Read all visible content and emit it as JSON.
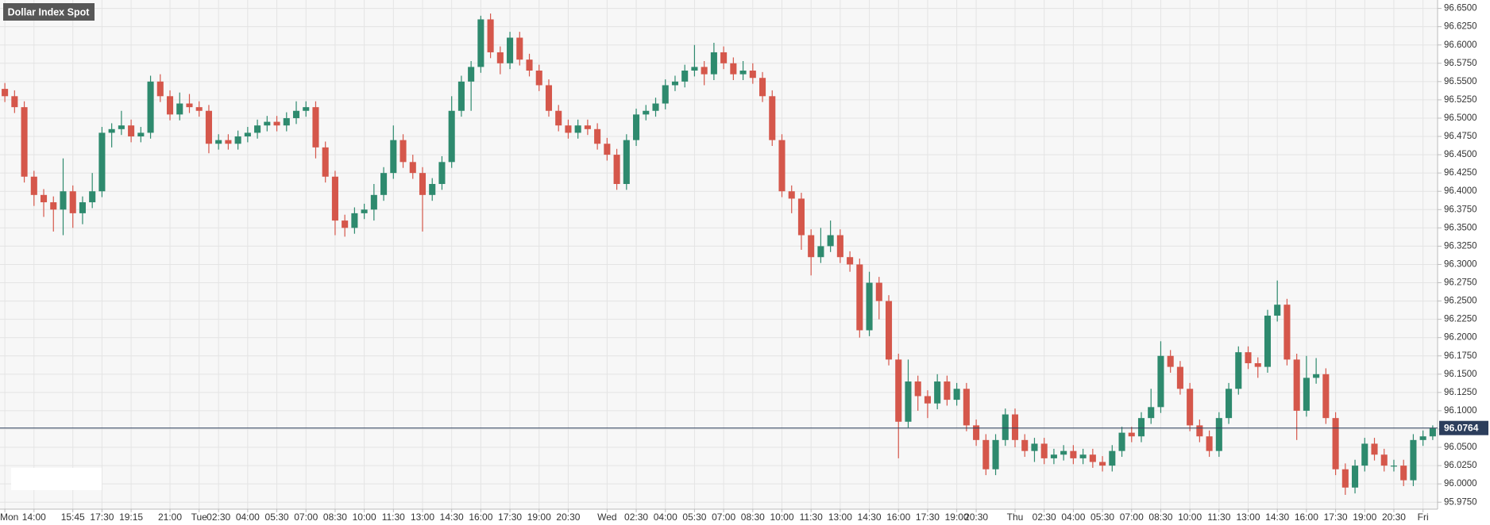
{
  "chart_data": {
    "type": "candlestick",
    "title": "Dollar Index Spot",
    "categories": [
      "Mon",
      null,
      null,
      "14:00",
      null,
      null,
      null,
      "15:45",
      null,
      null,
      "17:30",
      null,
      null,
      "19:15",
      null,
      null,
      null,
      "21:00",
      null,
      null,
      "Tue",
      null,
      "02:30",
      null,
      null,
      "04:00",
      null,
      null,
      "05:30",
      null,
      null,
      "07:00",
      null,
      null,
      "08:30",
      null,
      null,
      "10:00",
      null,
      null,
      "11:30",
      null,
      null,
      "13:00",
      null,
      null,
      "14:30",
      null,
      null,
      "16:00",
      null,
      null,
      "17:30",
      null,
      null,
      "19:00",
      null,
      null,
      "20:30",
      null,
      null,
      null,
      "Wed",
      null,
      null,
      "02:30",
      null,
      null,
      "04:00",
      null,
      null,
      "05:30",
      null,
      null,
      "07:00",
      null,
      null,
      "08:30",
      null,
      null,
      "10:00",
      null,
      null,
      "11:30",
      null,
      null,
      "13:00",
      null,
      null,
      "14:30",
      null,
      null,
      "16:00",
      null,
      null,
      "17:30",
      null,
      null,
      "19:00",
      null,
      "20:30",
      null,
      null,
      null,
      "Thu",
      null,
      null,
      "02:30",
      null,
      null,
      "04:00",
      null,
      null,
      "05:30",
      null,
      null,
      "07:00",
      null,
      null,
      "08:30",
      null,
      null,
      "10:00",
      null,
      null,
      "11:30",
      null,
      null,
      "13:00",
      null,
      null,
      "14:30",
      null,
      null,
      "16:00",
      null,
      null,
      "17:30",
      null,
      null,
      "19:00",
      null,
      null,
      "20:30",
      null,
      null,
      "Fri",
      null
    ],
    "open": [
      96.54,
      96.53,
      96.515,
      96.42,
      96.395,
      96.385,
      96.375,
      96.4,
      96.37,
      96.385,
      96.4,
      96.48,
      96.485,
      96.49,
      96.475,
      96.48,
      96.55,
      96.53,
      96.505,
      96.52,
      96.515,
      96.51,
      96.465,
      96.47,
      96.465,
      96.475,
      96.48,
      96.49,
      96.495,
      96.49,
      96.5,
      96.51,
      96.515,
      96.46,
      96.42,
      96.36,
      96.35,
      96.37,
      96.375,
      96.395,
      96.425,
      96.47,
      96.44,
      96.425,
      96.395,
      96.41,
      96.44,
      96.51,
      96.55,
      96.57,
      96.635,
      96.59,
      96.575,
      96.61,
      96.58,
      96.565,
      96.545,
      96.51,
      96.49,
      96.48,
      96.49,
      96.485,
      96.465,
      96.45,
      96.41,
      96.47,
      96.505,
      96.51,
      96.52,
      96.545,
      96.55,
      96.565,
      96.57,
      96.56,
      96.59,
      96.575,
      96.56,
      96.565,
      96.555,
      96.53,
      96.47,
      96.4,
      96.39,
      96.34,
      96.31,
      96.325,
      96.34,
      96.31,
      96.3,
      96.21,
      96.275,
      96.25,
      96.17,
      96.085,
      96.14,
      96.12,
      96.11,
      96.14,
      96.115,
      96.13,
      96.08,
      96.06,
      96.02,
      96.06,
      96.095,
      96.06,
      96.045,
      96.055,
      96.035,
      96.04,
      96.045,
      96.035,
      96.04,
      96.03,
      96.025,
      96.045,
      96.07,
      96.065,
      96.09,
      96.105,
      96.175,
      96.16,
      96.13,
      96.08,
      96.065,
      96.045,
      96.09,
      96.13,
      96.18,
      96.165,
      96.16,
      96.23,
      96.245,
      96.17,
      96.1,
      96.145,
      96.15,
      96.09,
      96.02,
      95.995,
      96.025,
      96.055,
      96.04,
      96.025,
      96.025,
      96.005,
      96.06,
      96.065
    ],
    "high": [
      96.548,
      96.538,
      96.523,
      96.428,
      96.403,
      96.393,
      96.445,
      96.408,
      96.393,
      96.425,
      96.488,
      96.493,
      96.51,
      96.498,
      96.488,
      96.558,
      96.56,
      96.538,
      96.535,
      96.533,
      96.523,
      96.518,
      96.478,
      96.478,
      96.483,
      96.488,
      96.498,
      96.503,
      96.503,
      96.508,
      96.523,
      96.523,
      96.523,
      96.468,
      96.428,
      96.368,
      96.378,
      96.383,
      96.41,
      96.433,
      96.49,
      96.478,
      96.45,
      96.433,
      96.418,
      96.448,
      96.53,
      96.558,
      96.578,
      96.64,
      96.643,
      96.598,
      96.618,
      96.618,
      96.588,
      96.573,
      96.553,
      96.518,
      96.498,
      96.498,
      96.498,
      96.493,
      96.473,
      96.458,
      96.478,
      96.513,
      96.518,
      96.528,
      96.553,
      96.558,
      96.573,
      96.6,
      96.578,
      96.603,
      96.598,
      96.583,
      96.578,
      96.575,
      96.563,
      96.538,
      96.478,
      96.408,
      96.398,
      96.348,
      96.35,
      96.36,
      96.348,
      96.318,
      96.308,
      96.29,
      96.283,
      96.258,
      96.178,
      96.17,
      96.148,
      96.128,
      96.15,
      96.148,
      96.138,
      96.138,
      96.088,
      96.068,
      96.068,
      96.103,
      96.103,
      96.068,
      96.063,
      96.063,
      96.048,
      96.053,
      96.053,
      96.048,
      96.048,
      96.038,
      96.053,
      96.078,
      96.078,
      96.098,
      96.13,
      96.195,
      96.183,
      96.168,
      96.138,
      96.088,
      96.073,
      96.098,
      96.138,
      96.188,
      96.188,
      96.173,
      96.238,
      96.278,
      96.253,
      96.178,
      96.175,
      96.172,
      96.158,
      96.098,
      96.028,
      96.033,
      96.063,
      96.063,
      96.048,
      96.033,
      96.033,
      96.068,
      96.073,
      96.08
    ],
    "low": [
      96.522,
      96.507,
      96.412,
      96.38,
      96.365,
      96.345,
      96.34,
      96.35,
      96.355,
      96.377,
      96.392,
      96.46,
      96.477,
      96.467,
      96.467,
      96.472,
      96.522,
      96.497,
      96.497,
      96.507,
      96.502,
      96.452,
      96.457,
      96.457,
      96.457,
      96.467,
      96.472,
      96.482,
      96.482,
      96.482,
      96.492,
      96.502,
      96.445,
      96.412,
      96.34,
      96.338,
      96.342,
      96.362,
      96.36,
      96.387,
      96.417,
      96.432,
      96.417,
      96.345,
      96.387,
      96.402,
      96.432,
      96.502,
      96.51,
      96.562,
      96.582,
      96.56,
      96.567,
      96.572,
      96.557,
      96.537,
      96.502,
      96.482,
      96.472,
      96.472,
      96.477,
      96.457,
      96.442,
      96.402,
      96.402,
      96.462,
      96.497,
      96.502,
      96.512,
      96.537,
      96.542,
      96.557,
      96.545,
      96.552,
      96.567,
      96.552,
      96.552,
      96.547,
      96.522,
      96.462,
      96.392,
      96.37,
      96.32,
      96.285,
      96.302,
      96.317,
      96.302,
      96.29,
      96.2,
      96.202,
      96.225,
      96.162,
      96.035,
      96.077,
      96.1,
      96.09,
      96.102,
      96.107,
      96.107,
      96.072,
      96.052,
      96.012,
      96.012,
      96.052,
      96.05,
      96.037,
      96.03,
      96.027,
      96.027,
      96.032,
      96.027,
      96.027,
      96.022,
      96.017,
      96.017,
      96.037,
      96.057,
      96.057,
      96.082,
      96.097,
      96.152,
      96.122,
      96.072,
      96.057,
      96.037,
      96.037,
      96.082,
      96.122,
      96.157,
      96.145,
      96.152,
      96.222,
      96.162,
      96.06,
      96.092,
      96.137,
      96.082,
      96.012,
      95.985,
      95.987,
      96.017,
      96.032,
      96.017,
      96.017,
      95.997,
      95.997,
      96.052,
      96.06
    ],
    "close": [
      96.53,
      96.515,
      96.42,
      96.395,
      96.385,
      96.375,
      96.4,
      96.37,
      96.385,
      96.4,
      96.48,
      96.485,
      96.49,
      96.475,
      96.48,
      96.55,
      96.53,
      96.505,
      96.52,
      96.515,
      96.51,
      96.465,
      96.47,
      96.465,
      96.475,
      96.48,
      96.49,
      96.495,
      96.49,
      96.5,
      96.51,
      96.515,
      96.46,
      96.42,
      96.36,
      96.35,
      96.37,
      96.375,
      96.395,
      96.425,
      96.47,
      96.44,
      96.425,
      96.395,
      96.41,
      96.44,
      96.51,
      96.55,
      96.57,
      96.635,
      96.59,
      96.575,
      96.61,
      96.58,
      96.565,
      96.545,
      96.51,
      96.49,
      96.48,
      96.49,
      96.485,
      96.465,
      96.45,
      96.41,
      96.47,
      96.505,
      96.51,
      96.52,
      96.545,
      96.55,
      96.565,
      96.57,
      96.56,
      96.59,
      96.575,
      96.56,
      96.565,
      96.555,
      96.53,
      96.47,
      96.4,
      96.39,
      96.34,
      96.31,
      96.325,
      96.34,
      96.31,
      96.3,
      96.21,
      96.275,
      96.25,
      96.17,
      96.085,
      96.14,
      96.12,
      96.11,
      96.14,
      96.115,
      96.13,
      96.08,
      96.06,
      96.02,
      96.06,
      96.095,
      96.06,
      96.045,
      96.055,
      96.035,
      96.04,
      96.045,
      96.035,
      96.04,
      96.03,
      96.025,
      96.045,
      96.07,
      96.065,
      96.09,
      96.105,
      96.175,
      96.16,
      96.13,
      96.08,
      96.065,
      96.045,
      96.09,
      96.13,
      96.18,
      96.165,
      96.16,
      96.23,
      96.245,
      96.17,
      96.1,
      96.145,
      96.15,
      96.09,
      96.02,
      95.995,
      96.025,
      96.055,
      96.04,
      96.025,
      96.025,
      96.005,
      96.06,
      96.065,
      96.076
    ],
    "up_color": "#2e8a6e",
    "down_color": "#d5574b",
    "last_price": 96.0764,
    "last_price_color": "#2c3e5c",
    "ylim": [
      95.9655,
      96.6615
    ],
    "yticks": [
      {
        "value": 95.975,
        "label": "95.9750"
      },
      {
        "value": 96.0,
        "label": "96.0000"
      },
      {
        "value": 96.025,
        "label": "96.0250"
      },
      {
        "value": 96.05,
        "label": "96.0500"
      },
      {
        "value": 96.075,
        "label": "96.0750"
      },
      {
        "value": 96.1,
        "label": "96.1000"
      },
      {
        "value": 96.125,
        "label": "96.1250"
      },
      {
        "value": 96.15,
        "label": "96.1500"
      },
      {
        "value": 96.175,
        "label": "96.1750"
      },
      {
        "value": 96.2,
        "label": "96.2000"
      },
      {
        "value": 96.225,
        "label": "96.2250"
      },
      {
        "value": 96.25,
        "label": "96.2500"
      },
      {
        "value": 96.275,
        "label": "96.2750"
      },
      {
        "value": 96.3,
        "label": "96.3000"
      },
      {
        "value": 96.325,
        "label": "96.3250"
      },
      {
        "value": 96.35,
        "label": "96.3500"
      },
      {
        "value": 96.375,
        "label": "96.3750"
      },
      {
        "value": 96.4,
        "label": "96.4000"
      },
      {
        "value": 96.425,
        "label": "96.4250"
      },
      {
        "value": 96.45,
        "label": "96.4500"
      },
      {
        "value": 96.475,
        "label": "96.4750"
      },
      {
        "value": 96.5,
        "label": "96.5000"
      },
      {
        "value": 96.525,
        "label": "96.5250"
      },
      {
        "value": 96.55,
        "label": "96.5500"
      },
      {
        "value": 96.575,
        "label": "96.5750"
      },
      {
        "value": 96.6,
        "label": "96.6000"
      },
      {
        "value": 96.625,
        "label": "96.6250"
      },
      {
        "value": 96.65,
        "label": "96.6500"
      }
    ],
    "grid": true
  }
}
